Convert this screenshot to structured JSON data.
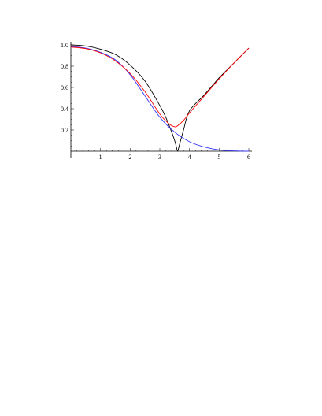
{
  "chart_data": {
    "type": "line",
    "title": "",
    "xlabel": "",
    "ylabel": "",
    "xlim": [
      0,
      6
    ],
    "ylim": [
      0,
      1.0
    ],
    "x_ticks": [
      1,
      2,
      3,
      4,
      5,
      6
    ],
    "y_ticks": [
      0.2,
      0.4,
      0.6,
      0.8,
      1.0
    ],
    "x_tick_labels": [
      "1",
      "2",
      "3",
      "4",
      "5",
      "6"
    ],
    "y_tick_labels": [
      "0.2",
      "0.4",
      "0.6",
      "0.8",
      "1.0"
    ],
    "grid": false,
    "legend": "none",
    "series": [
      {
        "color": "#000000",
        "x": [
          0,
          0.5,
          1,
          1.5,
          2,
          2.5,
          3,
          3.2,
          3.4,
          3.5,
          3.55,
          3.6,
          3.65,
          3.7,
          3.8,
          4,
          4.5,
          5,
          5.5,
          6
        ],
        "y": [
          1.0,
          0.99,
          0.96,
          0.91,
          0.81,
          0.66,
          0.43,
          0.32,
          0.18,
          0.1,
          0.05,
          0.0,
          0.05,
          0.1,
          0.2,
          0.38,
          0.53,
          0.69,
          0.83,
          0.97
        ]
      },
      {
        "color": "#3333ff",
        "x": [
          0,
          0.5,
          1,
          1.5,
          2,
          2.5,
          3,
          3.5,
          4,
          4.5,
          5,
          5.5,
          6
        ],
        "y": [
          0.985,
          0.97,
          0.93,
          0.86,
          0.72,
          0.52,
          0.32,
          0.18,
          0.09,
          0.04,
          0.012,
          0.003,
          0.0
        ]
      },
      {
        "color": "#ff0000",
        "x": [
          0,
          0.5,
          1,
          1.5,
          2,
          2.5,
          3,
          3.3,
          3.5,
          3.6,
          3.8,
          4,
          4.5,
          5,
          5.5,
          6
        ],
        "y": [
          0.98,
          0.965,
          0.925,
          0.85,
          0.73,
          0.56,
          0.35,
          0.26,
          0.23,
          0.24,
          0.29,
          0.36,
          0.52,
          0.68,
          0.83,
          0.97
        ]
      }
    ]
  }
}
